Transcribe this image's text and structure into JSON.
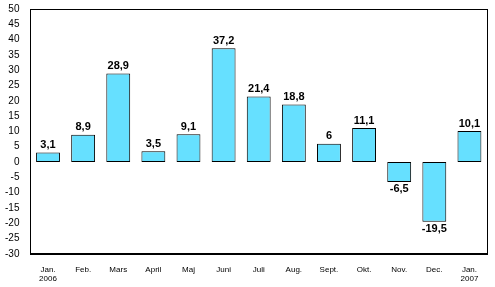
{
  "chart_data": {
    "type": "bar",
    "categories": [
      "Jan. 2006",
      "Feb.",
      "Mars",
      "April",
      "Maj",
      "Juni",
      "Juli",
      "Aug.",
      "Sept.",
      "Okt.",
      "Nov.",
      "Dec.",
      "Jan. 2007"
    ],
    "values": [
      3.1,
      8.9,
      28.9,
      3.5,
      9.1,
      37.2,
      21.4,
      18.8,
      6,
      11.1,
      -6.5,
      -19.5,
      10.1
    ],
    "value_labels": [
      "3,1",
      "8,9",
      "28,9",
      "3,5",
      "9,1",
      "37,2",
      "21,4",
      "18,8",
      "6",
      "11,1",
      "-6,5",
      "-19,5",
      "10,1"
    ],
    "color": "#66e0ff",
    "ylim": [
      -30,
      50
    ],
    "yticks": [
      -30,
      -25,
      -20,
      -15,
      -10,
      -5,
      0,
      5,
      10,
      15,
      20,
      25,
      30,
      35,
      40,
      45,
      50
    ],
    "grid": false,
    "data_labels": true
  }
}
